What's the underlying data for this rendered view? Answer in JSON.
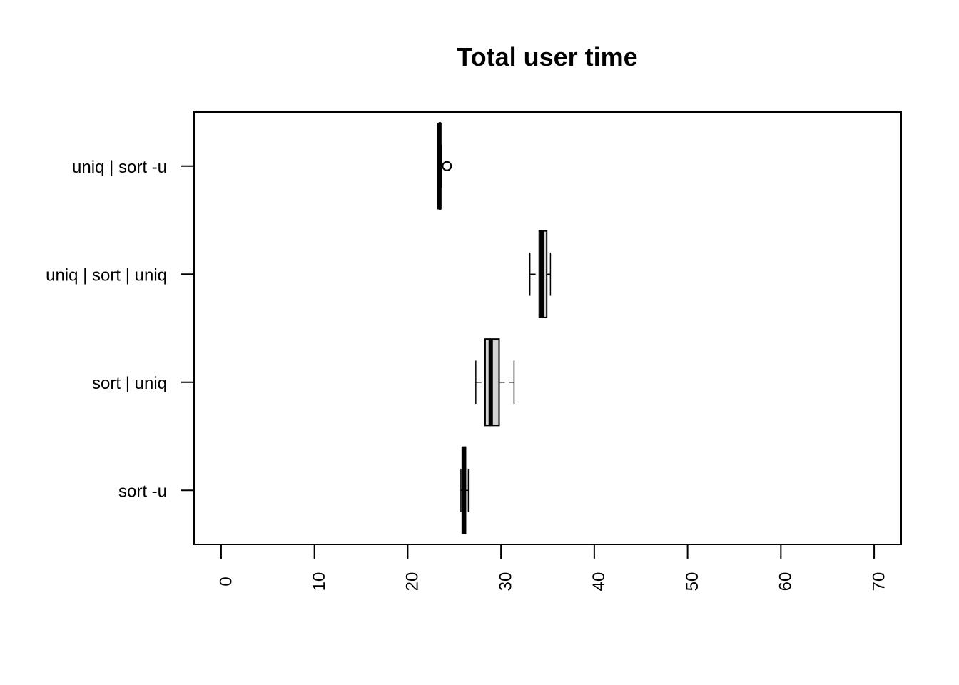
{
  "chart_data": {
    "type": "boxplot",
    "orientation": "horizontal",
    "title": "Total user time",
    "xlabel": "",
    "ylabel": "",
    "xlim": [
      -2.9,
      72.9
    ],
    "xticks": [
      0,
      10,
      20,
      30,
      40,
      50,
      60,
      70
    ],
    "xtick_labels": [
      "0",
      "10",
      "20",
      "30",
      "40",
      "50",
      "60",
      "70"
    ],
    "grid": false,
    "box_fill": "#d3d3d3",
    "categories": [
      "sort -u",
      "sort | uniq",
      "uniq | sort | uniq",
      "uniq | sort -u"
    ],
    "boxes": [
      {
        "label": "sort -u",
        "min": 25.7,
        "q1": 25.9,
        "median": 26.0,
        "q3": 26.2,
        "max": 26.5,
        "outliers": []
      },
      {
        "label": "sort | uniq",
        "min": 27.3,
        "q1": 28.3,
        "median": 28.9,
        "q3": 29.8,
        "max": 31.4,
        "outliers": []
      },
      {
        "label": "uniq | sort | uniq",
        "min": 33.1,
        "q1": 34.1,
        "median": 34.4,
        "q3": 34.9,
        "max": 35.3,
        "outliers": []
      },
      {
        "label": "uniq | sort -u",
        "min": 23.3,
        "q1": 23.4,
        "median": 23.4,
        "q3": 23.5,
        "max": 23.6,
        "outliers": [
          24.2
        ]
      }
    ]
  }
}
